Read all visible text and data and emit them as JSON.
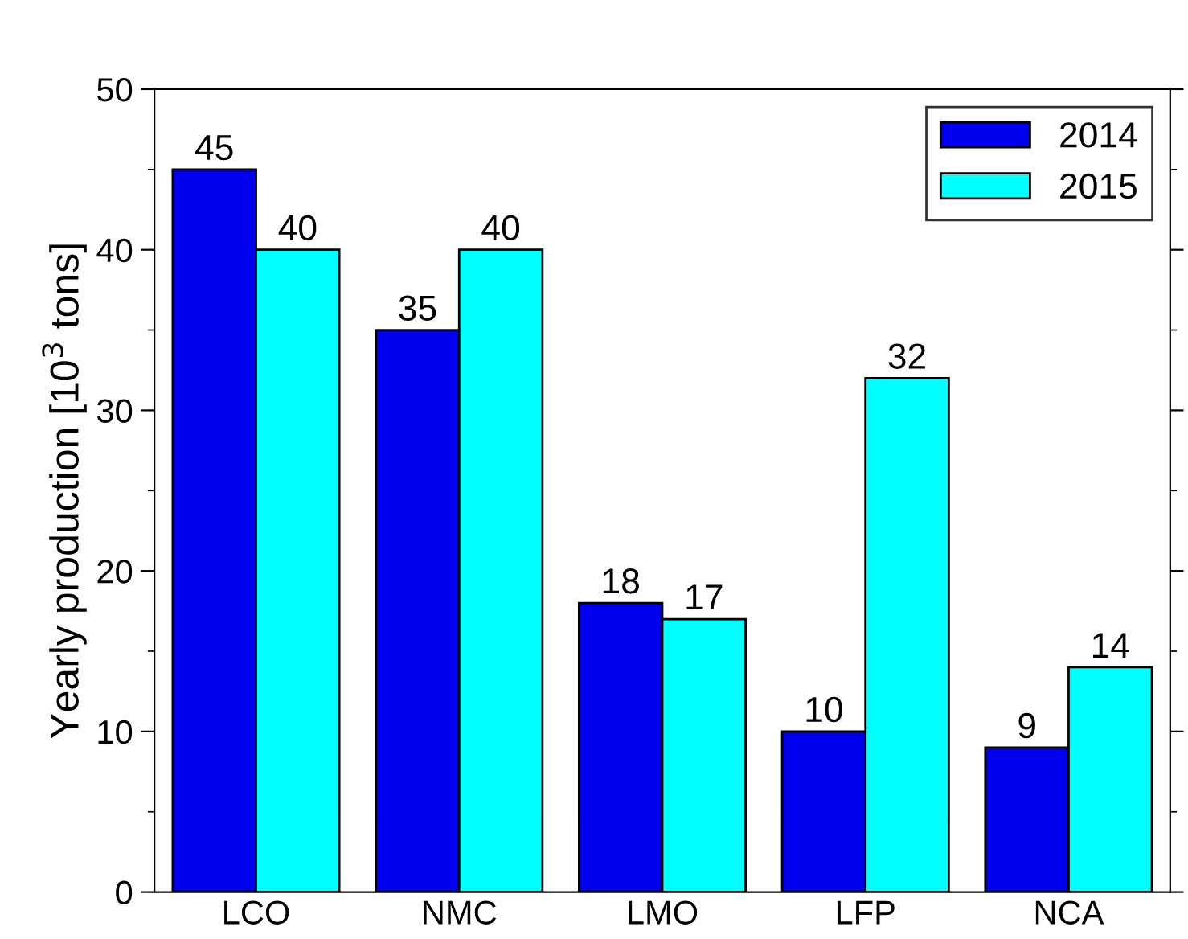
{
  "chart_data": {
    "type": "bar",
    "ylabel": "Yearly production [10$^{3}$ tons]",
    "categories": [
      "LCO",
      "NMC",
      "LMO",
      "LFP",
      "NCA"
    ],
    "series": [
      {
        "name": "2014",
        "color": "#0000ee",
        "values": [
          45,
          35,
          18,
          10,
          9
        ]
      },
      {
        "name": "2015",
        "color": "#00ffff",
        "values": [
          40,
          40,
          17,
          32,
          14
        ]
      }
    ],
    "ylim": [
      0,
      50
    ],
    "yticks": [
      0,
      10,
      20,
      30,
      40,
      50
    ],
    "data_labels": true,
    "legend": "top right",
    "grid": false
  }
}
